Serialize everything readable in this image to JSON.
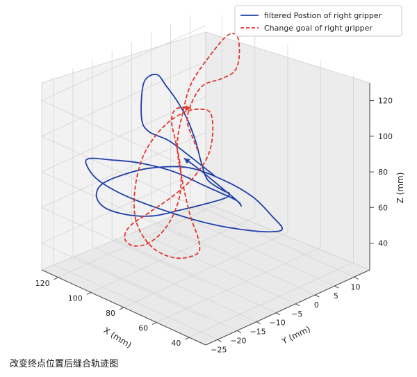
{
  "chart_data": {
    "type": "line",
    "projection": "3d",
    "xlabel": "X (mm)",
    "ylabel": "Y (mm)",
    "zlabel": "Z (mm)",
    "xlim": [
      30,
      130
    ],
    "ylim": [
      -28,
      14
    ],
    "zlim": [
      25,
      130
    ],
    "x_ticks": [
      "40",
      "60",
      "80",
      "100",
      "120"
    ],
    "y_ticks": [
      "−25",
      "−20",
      "−15",
      "−10",
      "−5",
      "0",
      "5",
      "10"
    ],
    "z_ticks": [
      "40",
      "60",
      "80",
      "100",
      "120"
    ],
    "grid": true,
    "legend_position": "top-right",
    "series": [
      {
        "name": "filtered Postion of right gripper",
        "color": "#1f3fa8",
        "style": "solid",
        "points": [
          [
            72,
            -8,
            82
          ],
          [
            85,
            -8,
            86
          ],
          [
            100,
            -8,
            90
          ],
          [
            110,
            -9,
            92
          ],
          [
            112,
            -10,
            100
          ],
          [
            113,
            -9,
            118
          ],
          [
            110,
            -7,
            122
          ],
          [
            104,
            -7,
            118
          ],
          [
            97,
            -7,
            112
          ],
          [
            86,
            -9,
            108
          ],
          [
            74,
            -12,
            104
          ],
          [
            66,
            -14,
            98
          ],
          [
            62,
            -14,
            90
          ],
          [
            62,
            -10,
            80
          ],
          [
            68,
            -6,
            72
          ],
          [
            78,
            -3,
            62
          ],
          [
            92,
            -2,
            52
          ],
          [
            105,
            -3,
            44
          ],
          [
            114,
            -6,
            40
          ],
          [
            120,
            -10,
            42
          ],
          [
            122,
            -15,
            50
          ],
          [
            118,
            -19,
            62
          ],
          [
            108,
            -22,
            76
          ],
          [
            94,
            -23,
            88
          ],
          [
            78,
            -22,
            98
          ],
          [
            62,
            -19,
            102
          ],
          [
            50,
            -15,
            96
          ],
          [
            44,
            -10,
            84
          ],
          [
            44,
            -5,
            68
          ],
          [
            50,
            0,
            54
          ],
          [
            62,
            3,
            44
          ],
          [
            78,
            3,
            38
          ],
          [
            96,
            1,
            36
          ],
          [
            112,
            -3,
            40
          ],
          [
            124,
            -9,
            50
          ],
          [
            127,
            -15,
            64
          ],
          [
            122,
            -20,
            80
          ],
          [
            110,
            -24,
            92
          ],
          [
            94,
            -26,
            100
          ],
          [
            78,
            -25,
            104
          ],
          [
            64,
            -22,
            102
          ],
          [
            54,
            -18,
            94
          ],
          [
            50,
            -12,
            82
          ],
          [
            56,
            -8,
            72
          ],
          [
            66,
            -5,
            68
          ],
          [
            80,
            -4,
            70
          ],
          [
            92,
            -4,
            74
          ],
          [
            98,
            -5,
            78
          ]
        ]
      },
      {
        "name": "Change goal of right gripper",
        "color": "#e0352b",
        "style": "dashed",
        "points": [
          [
            92,
            -4,
            84
          ],
          [
            100,
            -2,
            86
          ],
          [
            108,
            0,
            90
          ],
          [
            112,
            3,
            96
          ],
          [
            110,
            5,
            104
          ],
          [
            104,
            7,
            108
          ],
          [
            98,
            8,
            114
          ],
          [
            100,
            10,
            120
          ],
          [
            106,
            12,
            126
          ],
          [
            112,
            12,
            124
          ],
          [
            118,
            10,
            112
          ],
          [
            122,
            7,
            98
          ],
          [
            120,
            4,
            86
          ],
          [
            114,
            0,
            74
          ],
          [
            104,
            -3,
            62
          ],
          [
            92,
            -6,
            50
          ],
          [
            82,
            -8,
            42
          ],
          [
            78,
            -10,
            38
          ],
          [
            84,
            -13,
            36
          ],
          [
            96,
            -14,
            38
          ],
          [
            108,
            -13,
            46
          ],
          [
            116,
            -10,
            58
          ],
          [
            120,
            -6,
            72
          ],
          [
            118,
            -2,
            84
          ],
          [
            112,
            1,
            92
          ],
          [
            104,
            2,
            96
          ],
          [
            96,
            1,
            98
          ],
          [
            90,
            -1,
            92
          ],
          [
            88,
            -3,
            82
          ],
          [
            92,
            -5,
            70
          ],
          [
            100,
            -7,
            58
          ],
          [
            108,
            -10,
            48
          ],
          [
            112,
            -13,
            42
          ],
          [
            108,
            -16,
            40
          ],
          [
            98,
            -18,
            42
          ],
          [
            88,
            -18,
            48
          ],
          [
            82,
            -16,
            58
          ],
          [
            82,
            -13,
            70
          ],
          [
            88,
            -10,
            80
          ],
          [
            98,
            -7,
            88
          ],
          [
            108,
            -4,
            94
          ],
          [
            112,
            -1,
            96
          ],
          [
            108,
            1,
            96
          ]
        ]
      }
    ]
  },
  "caption": "改变终点位置后缝合轨迹图"
}
